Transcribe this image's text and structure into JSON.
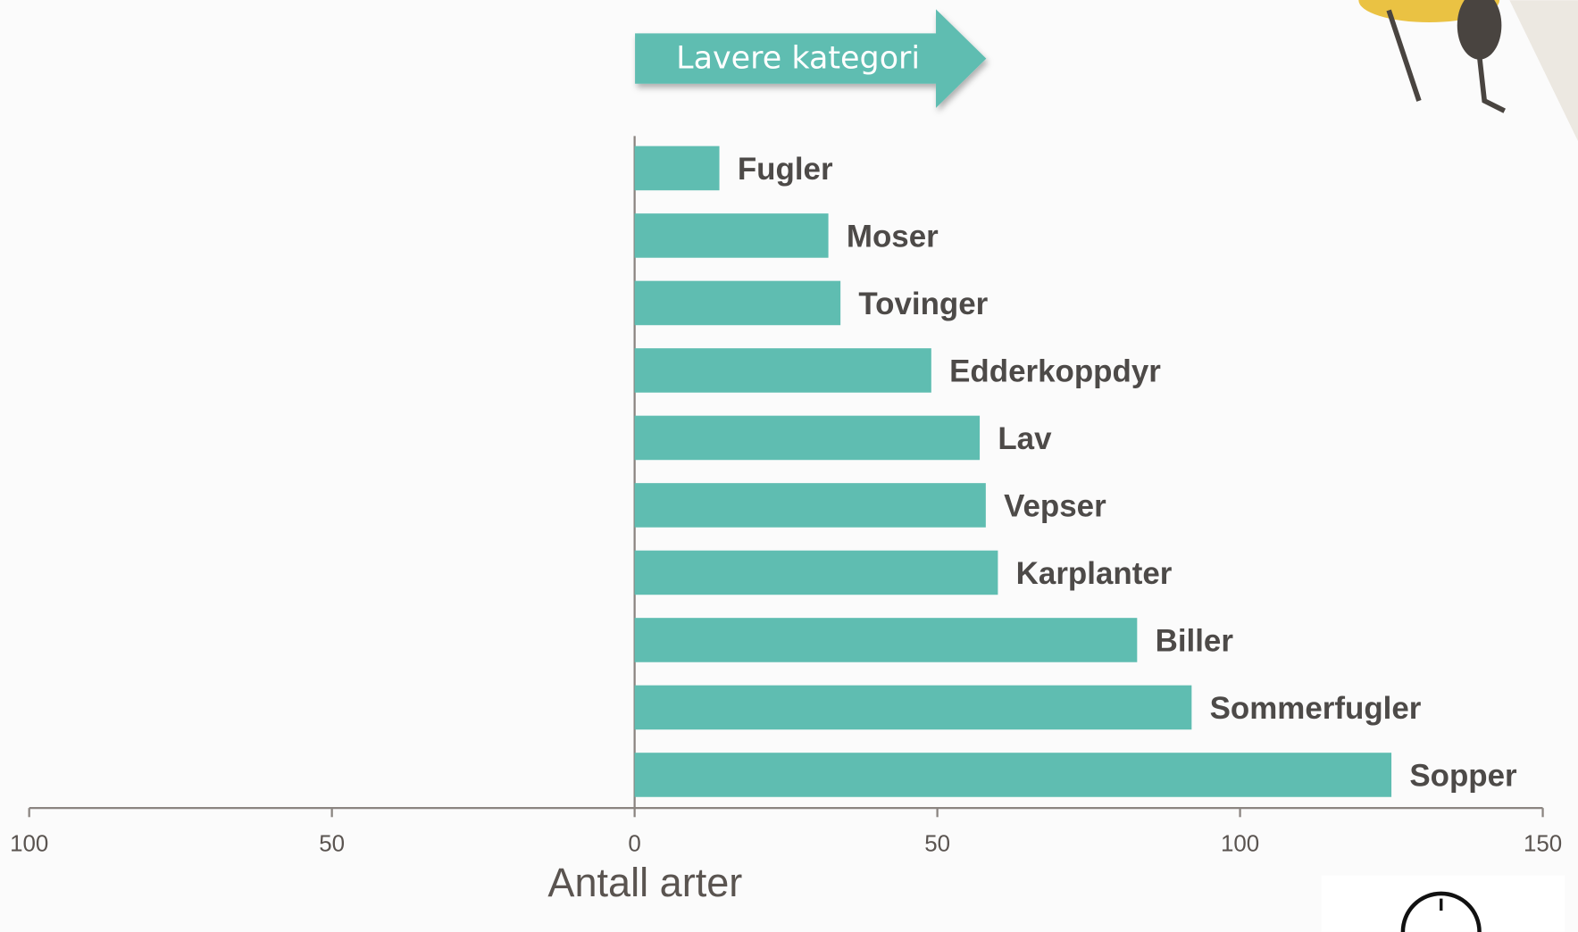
{
  "chart_data": {
    "type": "bar",
    "orientation": "horizontal",
    "annotation": "Lavere kategori",
    "x_label": "Antall arter",
    "categories": [
      "Fugler",
      "Moser",
      "Tovinger",
      "Edderkoppdyr",
      "Lav",
      "Vepser",
      "Karplanter",
      "Biller",
      "Sommerfugler",
      "Sopper"
    ],
    "values": [
      14,
      32,
      34,
      49,
      57,
      58,
      60,
      83,
      92,
      125
    ],
    "color": "#5fbdb1",
    "xlim": [
      -100,
      150
    ],
    "xticks": [
      {
        "value": -100,
        "label": "100"
      },
      {
        "value": -50,
        "label": "50"
      },
      0,
      50,
      100,
      150
    ]
  }
}
